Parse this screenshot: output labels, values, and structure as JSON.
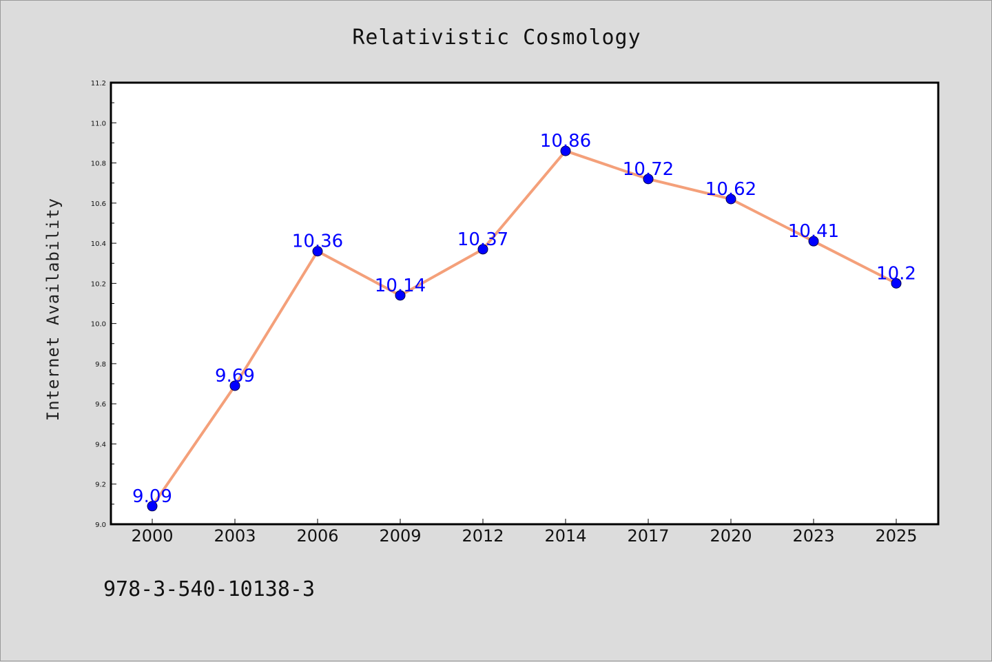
{
  "chart_data": {
    "type": "line",
    "title": "Relativistic Cosmology",
    "xlabel": "",
    "ylabel": "Internet Availability",
    "categories": [
      "2000",
      "2003",
      "2006",
      "2009",
      "2012",
      "2014",
      "2017",
      "2020",
      "2023",
      "2025"
    ],
    "series": [
      {
        "values": [
          9.09,
          9.69,
          10.36,
          10.14,
          10.37,
          10.86,
          10.72,
          10.62,
          10.41,
          10.2
        ]
      }
    ],
    "data_labels": [
      "9.09",
      "9.69",
      "10.36",
      "10.14",
      "10.37",
      "10.86",
      "10.72",
      "10.62",
      "10.41",
      "10.2"
    ],
    "ylim": [
      9.0,
      11.2
    ],
    "yticks": [
      "9.0",
      "9.2",
      "9.4",
      "9.6",
      "9.8",
      "10.0",
      "10.2",
      "10.4",
      "10.6",
      "10.8",
      "11.0",
      "11.2"
    ],
    "grid": false,
    "legend": "none",
    "colors": {
      "line": "#f4a07a",
      "marker": "#0000ff",
      "data_label": "#0000ff",
      "background": "#dcdcdc",
      "plot_area": "#ffffff"
    }
  },
  "footer": {
    "isbn": "978-3-540-10138-3"
  }
}
